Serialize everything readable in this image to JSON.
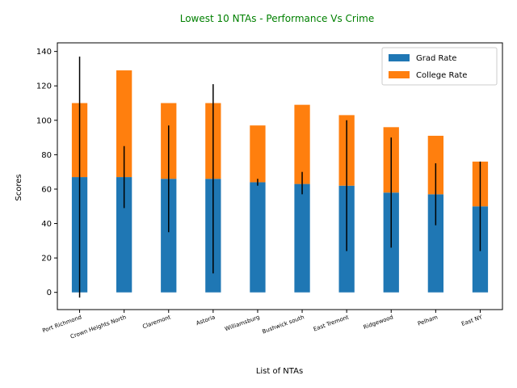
{
  "colors": {
    "grad": "#1f77b4",
    "college": "#ff7f0e",
    "title": "#008000",
    "error_bar": "#000000"
  },
  "chart_data": {
    "type": "bar",
    "stacked": true,
    "title": "Lowest 10 NTAs - Performance Vs Crime",
    "xlabel": "List of NTAs",
    "ylabel": "Scores",
    "ylim": [
      -10,
      145
    ],
    "yticks": [
      0,
      20,
      40,
      60,
      80,
      100,
      120,
      140
    ],
    "legend_position": "top-right",
    "grid": false,
    "categories": [
      "Port Richmond",
      "Crown Heights North",
      "Claremont",
      "Astoria",
      "Williamsburg",
      "Bushwick south",
      "East Tremont",
      "Ridgewood",
      "Pelham",
      "East NY"
    ],
    "series": [
      {
        "name": "Grad Rate",
        "values": [
          67,
          67,
          66,
          66,
          64,
          63,
          62,
          58,
          57,
          50
        ]
      },
      {
        "name": "College Rate",
        "values": [
          43,
          62,
          44,
          44,
          33,
          46,
          41,
          38,
          34,
          26
        ]
      }
    ],
    "error_bars": [
      {
        "center": 67,
        "low": -3,
        "high": 137
      },
      {
        "center": 67,
        "low": 49,
        "high": 85
      },
      {
        "center": 66,
        "low": 35,
        "high": 97
      },
      {
        "center": 66,
        "low": 11,
        "high": 121
      },
      {
        "center": 64,
        "low": 62,
        "high": 66
      },
      {
        "center": 63,
        "low": 57,
        "high": 70
      },
      {
        "center": 62,
        "low": 24,
        "high": 100
      },
      {
        "center": 58,
        "low": 26,
        "high": 90
      },
      {
        "center": 57,
        "low": 39,
        "high": 75
      },
      {
        "center": 50,
        "low": 24,
        "high": 76
      }
    ]
  }
}
